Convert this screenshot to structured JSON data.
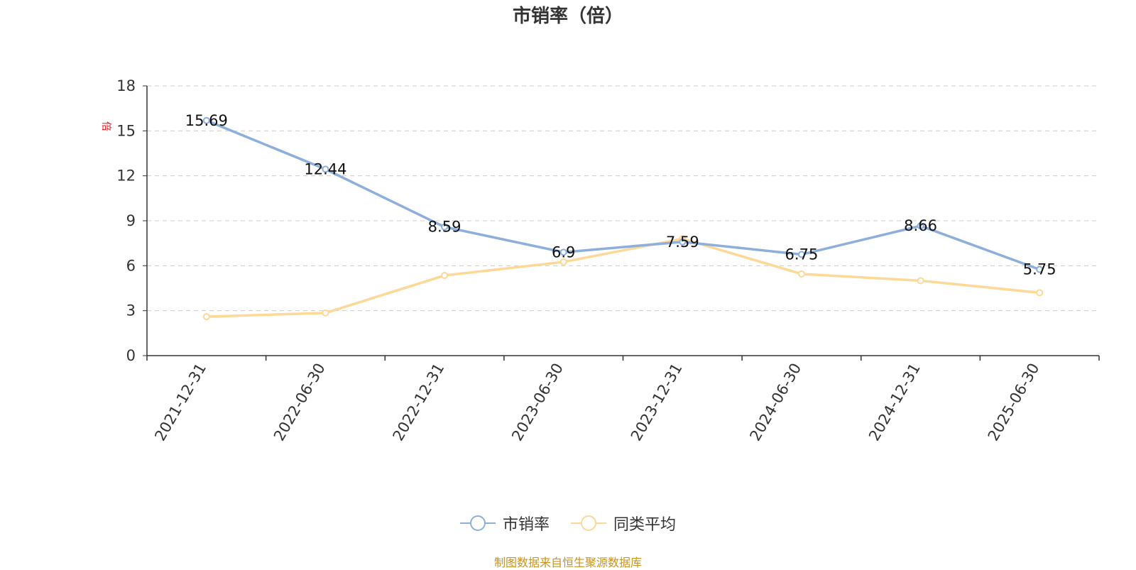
{
  "chart_data": {
    "type": "line",
    "title": "市销率（倍）",
    "ylabel": "倍",
    "ylim": [
      0,
      18
    ],
    "yticks": [
      0,
      3,
      6,
      9,
      12,
      15,
      18
    ],
    "grid": true,
    "legend_position": "bottom",
    "categories": [
      "2021-12-31",
      "2022-06-30",
      "2022-12-31",
      "2023-06-30",
      "2023-12-31",
      "2024-06-30",
      "2024-12-31",
      "2025-06-30"
    ],
    "series": [
      {
        "name": "市销率",
        "color": "#8eaedb",
        "values": [
          15.69,
          12.44,
          8.59,
          6.9,
          7.59,
          6.75,
          8.66,
          5.75
        ],
        "labels": [
          "15.69",
          "12.44",
          "8.59",
          "6.9",
          "7.59",
          "6.75",
          "8.66",
          "5.75"
        ]
      },
      {
        "name": "同类平均",
        "color": "#fdd896",
        "values": [
          2.6,
          2.85,
          5.35,
          6.25,
          7.8,
          5.45,
          5.0,
          4.2
        ]
      }
    ]
  },
  "legend": {
    "items": [
      "市销率",
      "同类平均"
    ]
  },
  "footer": {
    "source": "制图数据来自恒生聚源数据库"
  }
}
